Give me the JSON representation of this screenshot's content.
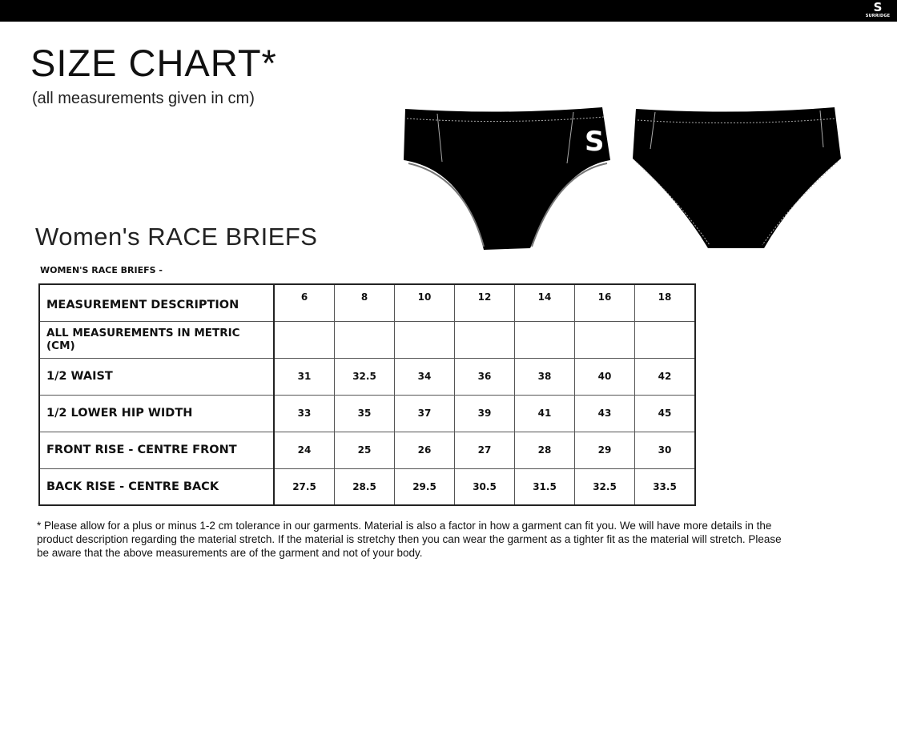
{
  "header": {
    "brand": "SURRIDGE",
    "logo_letter": "S"
  },
  "title": "SIZE CHART*",
  "subtitle": "(all measurements given in cm)",
  "product_title": "Women's  RACE BRIEFS",
  "table": {
    "caption": "WOMEN'S RACE BRIEFS -",
    "header": "MEASUREMENT DESCRIPTION",
    "sizes": [
      "6",
      "8",
      "10",
      "12",
      "14",
      "16",
      "18"
    ],
    "rows": [
      {
        "label": "ALL MEASUREMENTS IN METRIC (CM)",
        "values": [
          "",
          "",
          "",
          "",
          "",
          "",
          ""
        ]
      },
      {
        "label": "1/2 WAIST",
        "values": [
          "31",
          "32.5",
          "34",
          "36",
          "38",
          "40",
          "42"
        ]
      },
      {
        "label": "1/2 LOWER HIP WIDTH",
        "values": [
          "33",
          "35",
          "37",
          "39",
          "41",
          "43",
          "45"
        ]
      },
      {
        "label": "FRONT RISE - CENTRE FRONT",
        "values": [
          "24",
          "25",
          "26",
          "27",
          "28",
          "29",
          "30"
        ]
      },
      {
        "label": "BACK RISE - CENTRE BACK",
        "values": [
          "27.5",
          "28.5",
          "29.5",
          "30.5",
          "31.5",
          "32.5",
          "33.5"
        ]
      }
    ]
  },
  "footnote": "* Please allow for a plus or minus 1-2 cm tolerance in our garments. Material is also a factor in how a garment can fit you. We will have more details in the product description regarding the material stretch.  If the material is stretchy then you can wear the garment as a tighter fit as the material will stretch.  Please be aware that the above measurements are of the garment and not of your body.",
  "colors": {
    "topbar": "#000000",
    "garment": "#000000",
    "stitch": "#cccccc"
  }
}
